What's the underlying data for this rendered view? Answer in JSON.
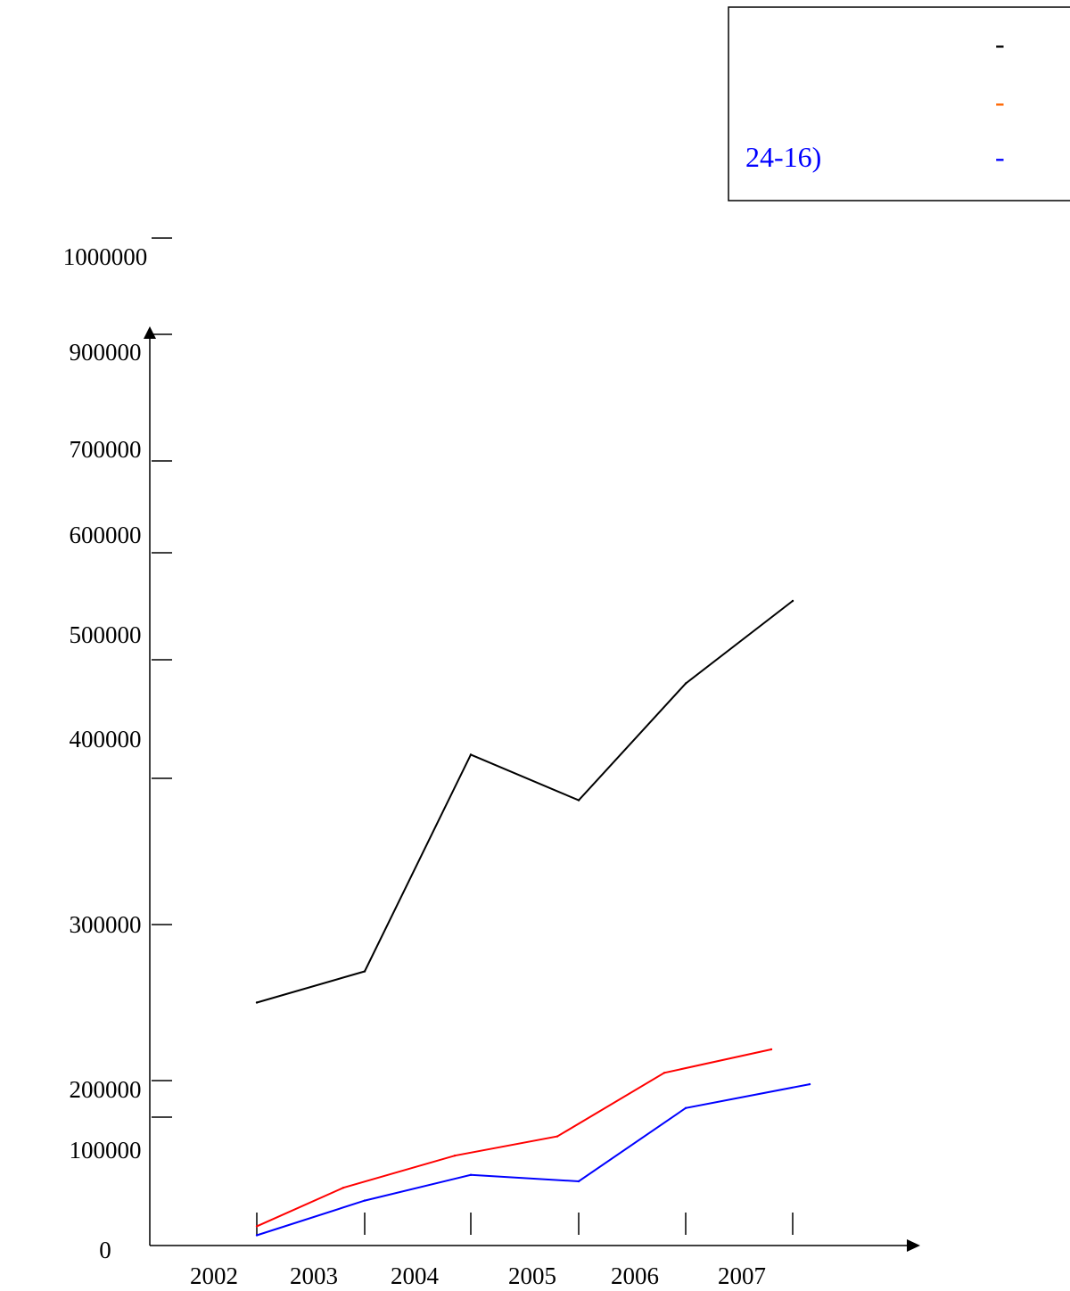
{
  "chart_data": {
    "type": "line",
    "categories": [
      "2002",
      "2003",
      "2004",
      "2005",
      "2006",
      "2007"
    ],
    "y_tick_labels": [
      "0",
      "100000",
      "200000",
      "300000",
      "400000",
      "500000",
      "600000",
      "700000",
      "900000",
      "1000000"
    ],
    "series": [
      {
        "color": "#000000",
        "values": [
          250000,
          270000,
          420000,
          385000,
          480000,
          555000
        ]
      },
      {
        "color": "#ff0000",
        "values": [
          15000,
          45000,
          70000,
          85000,
          205000,
          220000
        ]
      },
      {
        "color": "#0000ff",
        "values": [
          8000,
          35000,
          55000,
          50000,
          125000,
          190000
        ]
      }
    ],
    "legend": {
      "placement": "top-right",
      "entries": [
        {
          "text": "",
          "marker": "-",
          "color": "#000000"
        },
        {
          "text": "",
          "marker": "-",
          "color": "#ff6600"
        },
        {
          "text": "24-16)",
          "marker": "-",
          "color": "#0000ff"
        }
      ]
    },
    "grid": false
  }
}
